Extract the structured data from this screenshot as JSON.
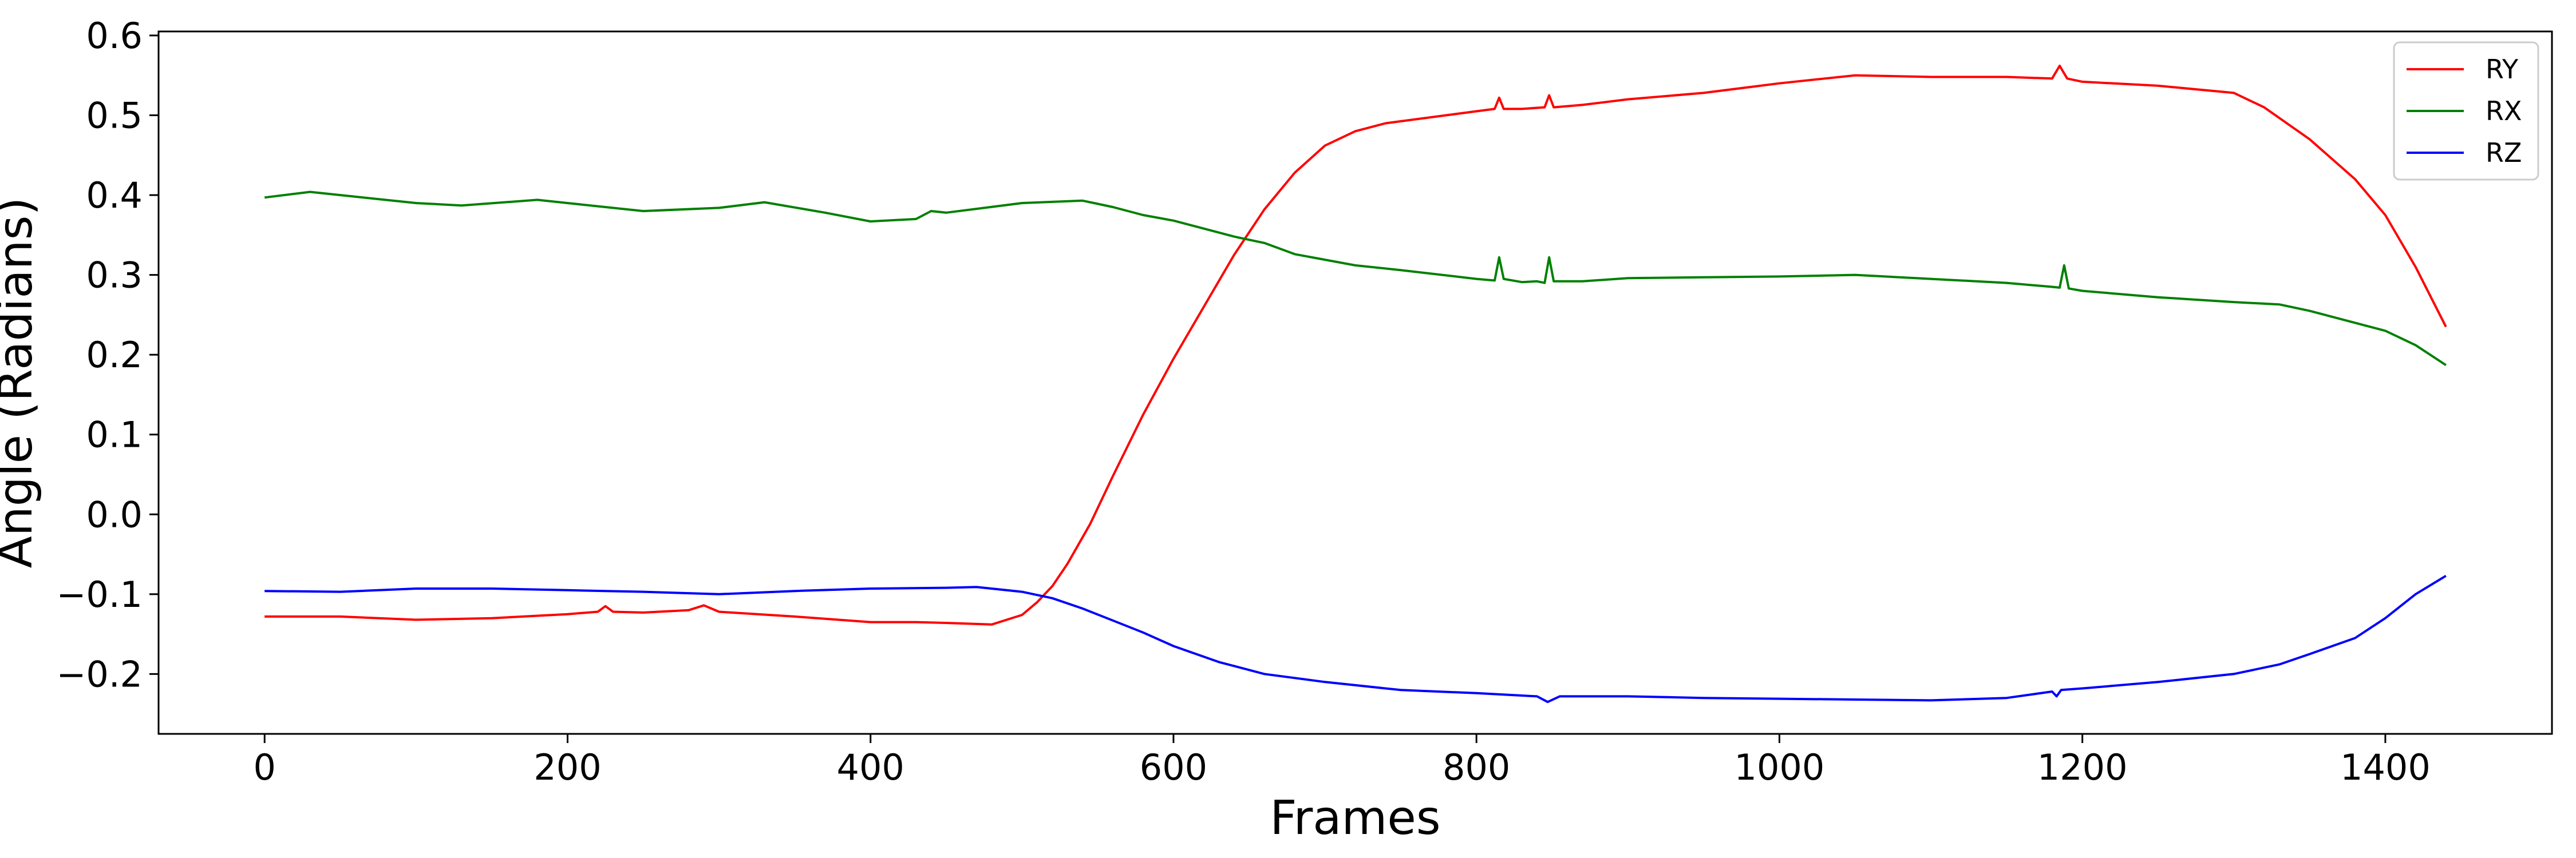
{
  "chart_data": {
    "type": "line",
    "title": "",
    "xlabel": "Frames",
    "ylabel": "Angle (Radians)",
    "xlim": [
      -70,
      1510
    ],
    "ylim": [
      -0.275,
      0.605
    ],
    "xticks": [
      0,
      200,
      400,
      600,
      800,
      1000,
      1200,
      1400
    ],
    "xtick_labels": [
      "0",
      "200",
      "400",
      "600",
      "800",
      "1000",
      "1200",
      "1400"
    ],
    "yticks": [
      -0.2,
      -0.1,
      0.0,
      0.1,
      0.2,
      0.3,
      0.4,
      0.5,
      0.6
    ],
    "ytick_labels": [
      "−0.2",
      "−0.1",
      "0.0",
      "0.1",
      "0.2",
      "0.3",
      "0.4",
      "0.5",
      "0.6"
    ],
    "grid": false,
    "legend_position": "top-right",
    "series": [
      {
        "name": "RY",
        "color": "#ff0000",
        "x": [
          0,
          50,
          100,
          150,
          200,
          220,
          225,
          230,
          250,
          280,
          290,
          300,
          350,
          400,
          430,
          450,
          480,
          500,
          510,
          520,
          530,
          545,
          560,
          580,
          600,
          620,
          640,
          660,
          680,
          700,
          720,
          740,
          760,
          780,
          800,
          812,
          815,
          818,
          830,
          845,
          848,
          851,
          870,
          900,
          950,
          1000,
          1050,
          1100,
          1150,
          1180,
          1185,
          1190,
          1200,
          1250,
          1300,
          1320,
          1350,
          1380,
          1400,
          1420,
          1440
        ],
        "y": [
          -0.128,
          -0.128,
          -0.132,
          -0.13,
          -0.125,
          -0.122,
          -0.115,
          -0.122,
          -0.123,
          -0.12,
          -0.114,
          -0.122,
          -0.128,
          -0.135,
          -0.135,
          -0.136,
          -0.138,
          -0.126,
          -0.11,
          -0.09,
          -0.062,
          -0.012,
          0.048,
          0.125,
          0.195,
          0.26,
          0.325,
          0.382,
          0.428,
          0.462,
          0.48,
          0.49,
          0.495,
          0.5,
          0.505,
          0.508,
          0.522,
          0.508,
          0.508,
          0.51,
          0.525,
          0.51,
          0.513,
          0.52,
          0.528,
          0.54,
          0.55,
          0.548,
          0.548,
          0.546,
          0.562,
          0.546,
          0.542,
          0.537,
          0.528,
          0.51,
          0.47,
          0.42,
          0.375,
          0.31,
          0.235
        ]
      },
      {
        "name": "RX",
        "color": "#008000",
        "x": [
          0,
          30,
          60,
          100,
          130,
          180,
          200,
          250,
          300,
          330,
          370,
          400,
          430,
          440,
          450,
          500,
          540,
          560,
          580,
          600,
          640,
          660,
          680,
          720,
          750,
          800,
          812,
          815,
          818,
          830,
          840,
          845,
          848,
          851,
          870,
          900,
          950,
          1000,
          1050,
          1100,
          1150,
          1180,
          1185,
          1188,
          1191,
          1200,
          1250,
          1300,
          1330,
          1350,
          1400,
          1420,
          1440
        ],
        "y": [
          0.397,
          0.404,
          0.398,
          0.39,
          0.387,
          0.394,
          0.39,
          0.38,
          0.384,
          0.391,
          0.378,
          0.367,
          0.37,
          0.38,
          0.378,
          0.39,
          0.393,
          0.385,
          0.375,
          0.368,
          0.348,
          0.34,
          0.326,
          0.312,
          0.306,
          0.295,
          0.293,
          0.322,
          0.295,
          0.291,
          0.292,
          0.29,
          0.322,
          0.292,
          0.292,
          0.296,
          0.297,
          0.298,
          0.3,
          0.295,
          0.29,
          0.285,
          0.284,
          0.312,
          0.283,
          0.28,
          0.272,
          0.266,
          0.263,
          0.255,
          0.23,
          0.212,
          0.187
        ]
      },
      {
        "name": "RZ",
        "color": "#0000ff",
        "x": [
          0,
          50,
          100,
          150,
          200,
          250,
          300,
          350,
          400,
          450,
          470,
          500,
          520,
          540,
          560,
          580,
          600,
          630,
          660,
          700,
          750,
          800,
          840,
          847,
          855,
          900,
          950,
          1000,
          1050,
          1100,
          1150,
          1180,
          1183,
          1186,
          1200,
          1250,
          1300,
          1330,
          1350,
          1380,
          1400,
          1420,
          1440
        ],
        "y": [
          -0.096,
          -0.097,
          -0.093,
          -0.093,
          -0.095,
          -0.097,
          -0.1,
          -0.096,
          -0.093,
          -0.092,
          -0.091,
          -0.097,
          -0.105,
          -0.118,
          -0.133,
          -0.148,
          -0.165,
          -0.185,
          -0.2,
          -0.21,
          -0.22,
          -0.224,
          -0.228,
          -0.235,
          -0.228,
          -0.228,
          -0.23,
          -0.231,
          -0.232,
          -0.233,
          -0.23,
          -0.222,
          -0.228,
          -0.22,
          -0.218,
          -0.21,
          -0.2,
          -0.188,
          -0.175,
          -0.155,
          -0.13,
          -0.1,
          -0.077
        ]
      }
    ]
  }
}
